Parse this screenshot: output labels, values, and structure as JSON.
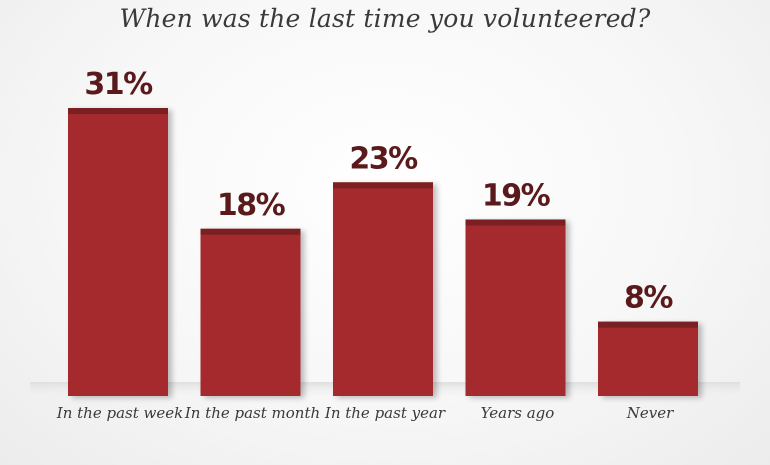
{
  "chart_data": {
    "type": "bar",
    "title": "When was the last time you volunteered?",
    "categories": [
      "In the past week",
      "In the past month",
      "In the past year",
      "Years ago",
      "Never"
    ],
    "values": [
      31,
      18,
      23,
      19,
      8
    ],
    "value_labels": [
      "31%",
      "18%",
      "23%",
      "19%",
      "8%"
    ],
    "ylim": [
      0,
      31
    ],
    "grid": false,
    "legend": "none",
    "colors": {
      "bar": "#a52a2e",
      "bar_cap": "#7a1f22",
      "label": "#5a1a1c"
    }
  }
}
